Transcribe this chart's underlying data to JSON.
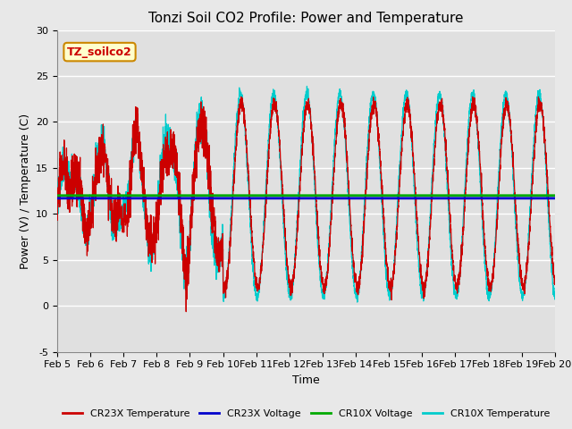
{
  "title": "Tonzi Soil CO2 Profile: Power and Temperature",
  "xlabel": "Time",
  "ylabel": "Power (V) / Temperature (C)",
  "ylim": [
    -5,
    30
  ],
  "xlim": [
    0,
    15
  ],
  "x_tick_labels": [
    "Feb 5",
    "Feb 6",
    "Feb 7",
    "Feb 8",
    "Feb 9",
    "Feb 10",
    "Feb 11",
    "Feb 12",
    "Feb 13",
    "Feb 14",
    "Feb 15",
    "Feb 16",
    "Feb 17",
    "Feb 18",
    "Feb 19",
    "Feb 20"
  ],
  "cr23x_voltage": 11.7,
  "cr10x_voltage": 12.0,
  "annotation_text": "TZ_soilco2",
  "annotation_box_facecolor": "#ffffcc",
  "annotation_box_edgecolor": "#cc8800",
  "fig_bg_color": "#e8e8e8",
  "plot_bg_color": "#e0e0e0",
  "legend_items": [
    "CR23X Temperature",
    "CR23X Voltage",
    "CR10X Voltage",
    "CR10X Temperature"
  ],
  "legend_colors": [
    "#cc0000",
    "#0000cc",
    "#00aa00",
    "#00cccc"
  ],
  "title_fontsize": 11,
  "axis_label_fontsize": 9,
  "tick_fontsize": 8
}
